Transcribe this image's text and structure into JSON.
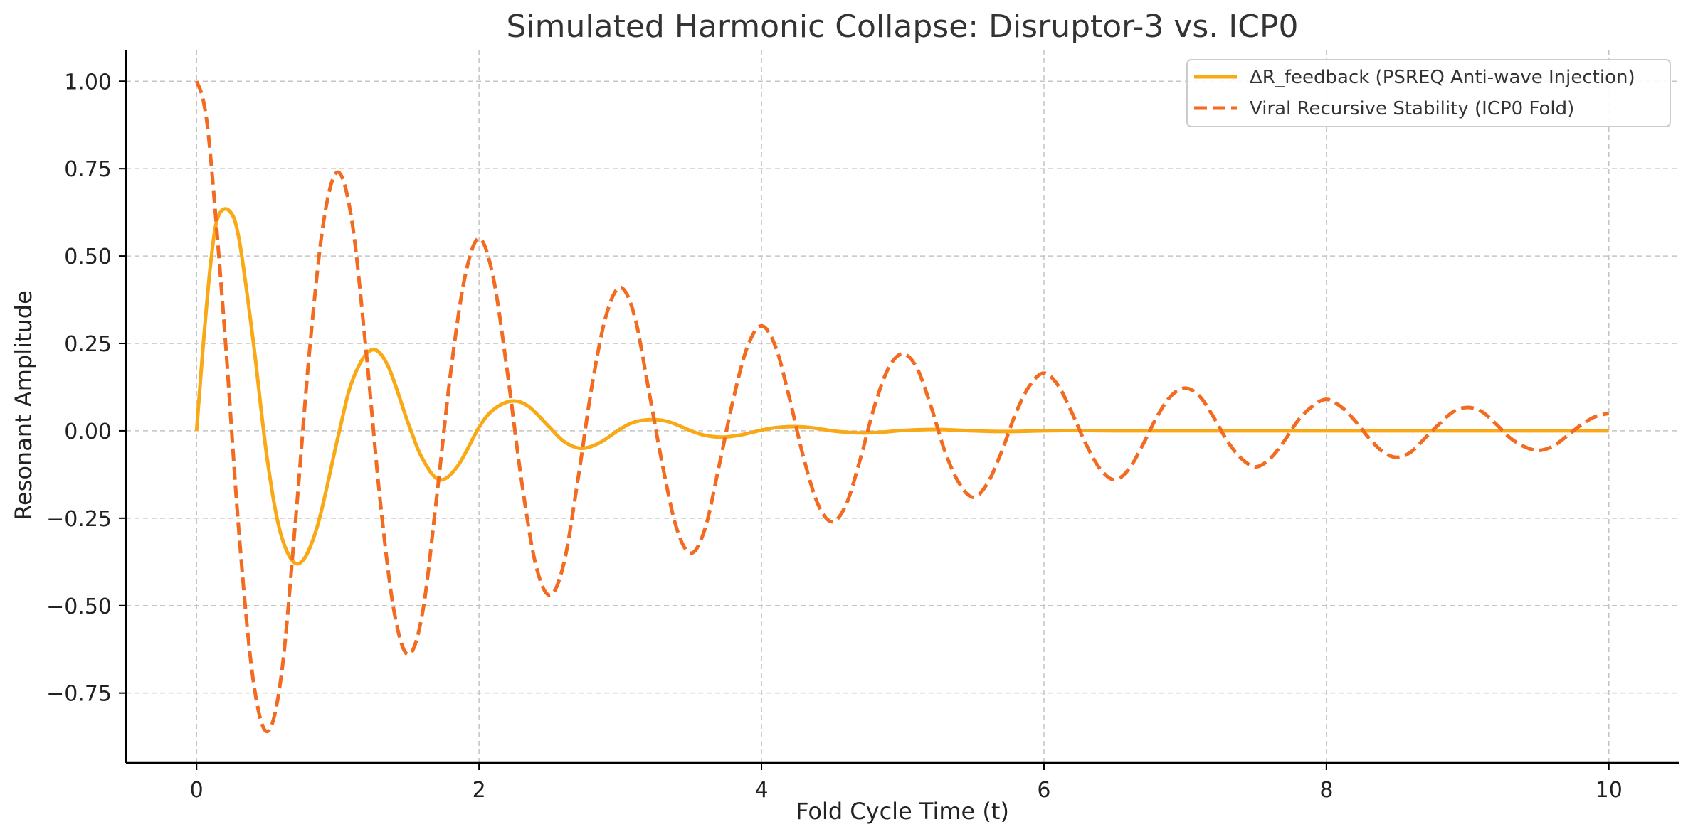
{
  "chart_data": {
    "type": "line",
    "title": "Simulated Harmonic Collapse: Disruptor-3 vs. ICP0",
    "xlabel": "Fold Cycle Time (t)",
    "ylabel": "Resonant Amplitude",
    "xlim": [
      -0.5,
      10.5
    ],
    "ylim": [
      -0.95,
      1.09
    ],
    "x_ticks": [
      0,
      2,
      4,
      6,
      8,
      10
    ],
    "x_tick_labels": [
      "0",
      "2",
      "4",
      "6",
      "8",
      "10"
    ],
    "y_ticks": [
      -0.75,
      -0.5,
      -0.25,
      0.0,
      0.25,
      0.5,
      0.75,
      1.0
    ],
    "y_tick_labels": [
      "−0.75",
      "−0.50",
      "−0.25",
      "0.00",
      "0.25",
      "0.50",
      "0.75",
      "1.00"
    ],
    "grid": true,
    "legend_position": "top-right",
    "series": [
      {
        "name": "ΔR_feedback (PSREQ Anti-wave Injection)",
        "color": "#FAA916",
        "line_style": "solid",
        "x": [
          0,
          0.05,
          0.1,
          0.15,
          0.23,
          0.3,
          0.4,
          0.5,
          0.6,
          0.72,
          0.85,
          1.0,
          1.1,
          1.23,
          1.35,
          1.5,
          1.6,
          1.72,
          1.85,
          2.0,
          2.1,
          2.23,
          2.35,
          2.5,
          2.6,
          2.72,
          2.85,
          3.0,
          3.1,
          3.23,
          3.35,
          3.5,
          3.6,
          3.72,
          3.85,
          4.0,
          4.1,
          4.23,
          4.35,
          4.5,
          4.6,
          4.72,
          4.85,
          5.0,
          5.23,
          5.5,
          5.72,
          6.0,
          6.23,
          6.5,
          7.0,
          8.0,
          9.0,
          10.0
        ],
        "y": [
          0.0,
          0.26,
          0.48,
          0.61,
          0.63,
          0.55,
          0.26,
          -0.08,
          -0.3,
          -0.38,
          -0.28,
          -0.02,
          0.14,
          0.23,
          0.19,
          0.02,
          -0.08,
          -0.14,
          -0.1,
          0.01,
          0.06,
          0.085,
          0.07,
          0.01,
          -0.03,
          -0.05,
          -0.035,
          0.005,
          0.025,
          0.032,
          0.025,
          0.0,
          -0.013,
          -0.018,
          -0.012,
          0.002,
          0.009,
          0.012,
          0.009,
          0.0,
          -0.004,
          -0.006,
          -0.004,
          0.001,
          0.004,
          0.0,
          -0.002,
          0.0,
          0.001,
          0.0,
          0.0,
          0.0,
          0.0,
          0.0
        ]
      },
      {
        "name": "Viral Recursive Stability (ICP0 Fold)",
        "color": "#F26B21",
        "line_style": "dashed",
        "x": [
          0,
          0.05,
          0.1,
          0.2,
          0.3,
          0.4,
          0.5,
          0.6,
          0.7,
          0.8,
          0.9,
          1.0,
          1.1,
          1.2,
          1.3,
          1.4,
          1.5,
          1.6,
          1.7,
          1.8,
          1.9,
          2.0,
          2.1,
          2.2,
          2.3,
          2.4,
          2.5,
          2.6,
          2.7,
          2.8,
          2.9,
          3.0,
          3.1,
          3.2,
          3.3,
          3.4,
          3.5,
          3.6,
          3.7,
          3.8,
          3.9,
          4.0,
          4.1,
          4.2,
          4.3,
          4.4,
          4.5,
          4.6,
          4.7,
          4.8,
          4.9,
          5.0,
          5.1,
          5.2,
          5.3,
          5.4,
          5.5,
          5.6,
          5.7,
          5.8,
          5.9,
          6.0,
          6.1,
          6.2,
          6.3,
          6.4,
          6.5,
          6.6,
          6.7,
          6.8,
          6.9,
          7.0,
          7.1,
          7.2,
          7.3,
          7.4,
          7.5,
          7.6,
          7.7,
          7.8,
          7.9,
          8.0,
          8.1,
          8.2,
          8.3,
          8.4,
          8.5,
          8.6,
          8.7,
          8.8,
          8.9,
          9.0,
          9.1,
          9.2,
          9.3,
          9.4,
          9.5,
          9.6,
          9.7,
          9.8,
          9.9,
          10.0
        ],
        "y": [
          1.0,
          0.94,
          0.78,
          0.28,
          -0.29,
          -0.71,
          -0.86,
          -0.7,
          -0.26,
          0.23,
          0.6,
          0.74,
          0.6,
          0.23,
          -0.2,
          -0.52,
          -0.64,
          -0.52,
          -0.19,
          0.17,
          0.44,
          0.55,
          0.44,
          0.17,
          -0.14,
          -0.38,
          -0.47,
          -0.38,
          -0.14,
          0.13,
          0.33,
          0.41,
          0.33,
          0.12,
          -0.1,
          -0.28,
          -0.35,
          -0.28,
          -0.1,
          0.09,
          0.24,
          0.3,
          0.24,
          0.09,
          -0.08,
          -0.21,
          -0.26,
          -0.21,
          -0.08,
          0.07,
          0.18,
          0.22,
          0.18,
          0.07,
          -0.06,
          -0.15,
          -0.19,
          -0.15,
          -0.06,
          0.05,
          0.13,
          0.165,
          0.13,
          0.05,
          -0.04,
          -0.11,
          -0.14,
          -0.11,
          -0.04,
          0.04,
          0.1,
          0.122,
          0.1,
          0.04,
          -0.03,
          -0.08,
          -0.103,
          -0.08,
          -0.03,
          0.03,
          0.07,
          0.09,
          0.07,
          0.03,
          -0.02,
          -0.06,
          -0.076,
          -0.06,
          -0.02,
          0.02,
          0.055,
          0.067,
          0.055,
          0.02,
          -0.02,
          -0.045,
          -0.056,
          -0.045,
          -0.016,
          0.016,
          0.04,
          0.05
        ]
      }
    ]
  }
}
